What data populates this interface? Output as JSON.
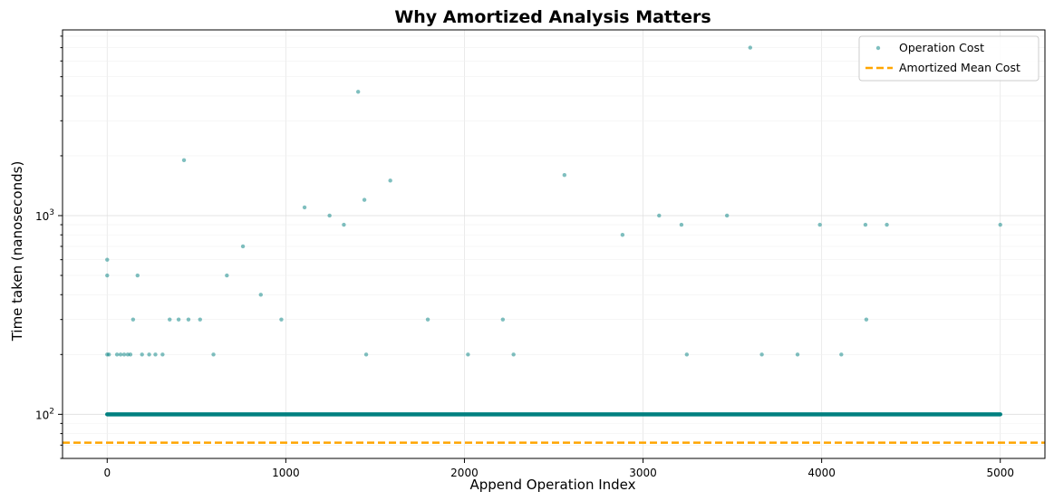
{
  "chart_data": {
    "type": "scatter",
    "title": "Why Amortized Analysis Matters",
    "xlabel": "Append Operation Index",
    "ylabel": "Time taken (nanoseconds)",
    "xlim": [
      -250,
      5250
    ],
    "ylim": [
      60,
      8600
    ],
    "yscale": "log",
    "grid": true,
    "legend_position": "top-right",
    "x_ticks": [
      {
        "value": 0,
        "label": "0"
      },
      {
        "value": 1000,
        "label": "1000"
      },
      {
        "value": 2000,
        "label": "2000"
      },
      {
        "value": 3000,
        "label": "3000"
      },
      {
        "value": 4000,
        "label": "4000"
      },
      {
        "value": 5000,
        "label": "5000"
      }
    ],
    "y_ticks": [
      {
        "value": 100,
        "base": "10",
        "exp": "2"
      },
      {
        "value": 1000,
        "base": "10",
        "exp": "3"
      }
    ],
    "series": [
      {
        "name": "Operation Cost",
        "kind": "scatter",
        "color": "#008080",
        "baseline": {
          "x_start": 0,
          "x_end": 5000,
          "y": 100
        },
        "points": [
          {
            "x": 0,
            "y": 600
          },
          {
            "x": 0,
            "y": 500
          },
          {
            "x": 0,
            "y": 200
          },
          {
            "x": 10,
            "y": 200
          },
          {
            "x": 55,
            "y": 200
          },
          {
            "x": 75,
            "y": 200
          },
          {
            "x": 95,
            "y": 200
          },
          {
            "x": 115,
            "y": 200
          },
          {
            "x": 130,
            "y": 200
          },
          {
            "x": 145,
            "y": 300
          },
          {
            "x": 170,
            "y": 500
          },
          {
            "x": 195,
            "y": 200
          },
          {
            "x": 235,
            "y": 200
          },
          {
            "x": 270,
            "y": 200
          },
          {
            "x": 310,
            "y": 200
          },
          {
            "x": 350,
            "y": 300
          },
          {
            "x": 400,
            "y": 300
          },
          {
            "x": 430,
            "y": 1900
          },
          {
            "x": 455,
            "y": 300
          },
          {
            "x": 520,
            "y": 300
          },
          {
            "x": 595,
            "y": 200
          },
          {
            "x": 670,
            "y": 500
          },
          {
            "x": 760,
            "y": 700
          },
          {
            "x": 860,
            "y": 400
          },
          {
            "x": 975,
            "y": 300
          },
          {
            "x": 1105,
            "y": 1100
          },
          {
            "x": 1245,
            "y": 1000
          },
          {
            "x": 1325,
            "y": 900
          },
          {
            "x": 1405,
            "y": 4200
          },
          {
            "x": 1440,
            "y": 1200
          },
          {
            "x": 1450,
            "y": 200
          },
          {
            "x": 1585,
            "y": 1500
          },
          {
            "x": 1795,
            "y": 300
          },
          {
            "x": 2020,
            "y": 200
          },
          {
            "x": 2215,
            "y": 300
          },
          {
            "x": 2275,
            "y": 200
          },
          {
            "x": 2560,
            "y": 1600
          },
          {
            "x": 2885,
            "y": 800
          },
          {
            "x": 3090,
            "y": 1000
          },
          {
            "x": 3215,
            "y": 900
          },
          {
            "x": 3245,
            "y": 200
          },
          {
            "x": 3470,
            "y": 1000
          },
          {
            "x": 3600,
            "y": 7000
          },
          {
            "x": 3665,
            "y": 200
          },
          {
            "x": 3865,
            "y": 200
          },
          {
            "x": 3990,
            "y": 900
          },
          {
            "x": 4110,
            "y": 200
          },
          {
            "x": 4245,
            "y": 900
          },
          {
            "x": 4250,
            "y": 300
          },
          {
            "x": 4365,
            "y": 900
          },
          {
            "x": 5000,
            "y": 900
          }
        ]
      },
      {
        "name": "Amortized Mean Cost",
        "kind": "hline",
        "color": "#FFA500",
        "y": 72
      }
    ]
  }
}
